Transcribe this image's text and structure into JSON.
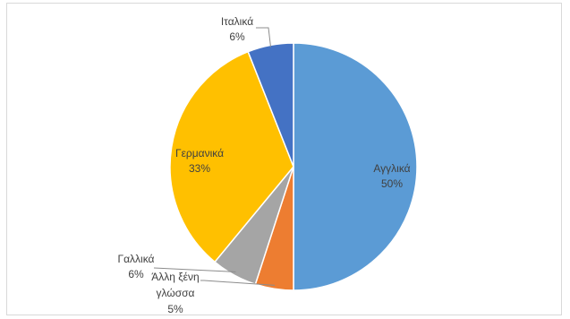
{
  "chart_data": {
    "type": "pie",
    "title": "",
    "categories": [
      "Αγγλικά",
      "Άλλη ξένη γλώσσα",
      "Γαλλικά",
      "Γερμανικά",
      "Ιταλικά"
    ],
    "values": [
      50,
      5,
      6,
      33,
      6
    ],
    "value_labels": [
      "50%",
      "5%",
      "6%",
      "33%",
      "6%"
    ],
    "colors": [
      "#5b9bd5",
      "#ed7d31",
      "#a5a5a5",
      "#ffc000",
      "#4472c4"
    ],
    "label_lines": [
      "Άλλη ξένη",
      "γλώσσα"
    ],
    "legend": "none"
  }
}
